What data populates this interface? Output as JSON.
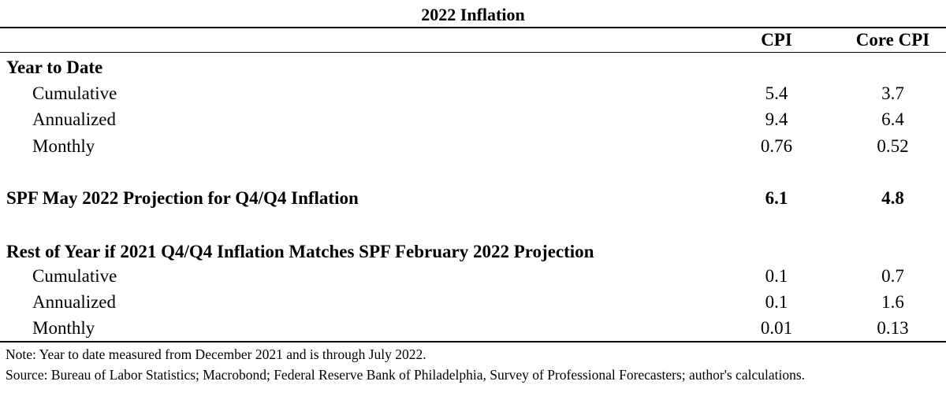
{
  "chart_data": {
    "type": "table",
    "title": "2022 Inflation",
    "columns": [
      "CPI",
      "Core CPI"
    ],
    "sections": [
      {
        "heading": "Year to Date",
        "rows": [
          {
            "label": "Cumulative",
            "values": [
              "5.4",
              "3.7"
            ]
          },
          {
            "label": "Annualized",
            "values": [
              "9.4",
              "6.4"
            ]
          },
          {
            "label": "Monthly",
            "values": [
              "0.76",
              "0.52"
            ]
          }
        ]
      },
      {
        "heading": "SPF May 2022 Projection for Q4/Q4 Inflation",
        "values": [
          "6.1",
          "4.8"
        ]
      },
      {
        "heading": "Rest of Year if 2021 Q4/Q4 Inflation Matches SPF February 2022 Projection",
        "rows": [
          {
            "label": "Cumulative",
            "values": [
              "0.1",
              "0.7"
            ]
          },
          {
            "label": "Annualized",
            "values": [
              "0.1",
              "1.6"
            ]
          },
          {
            "label": "Monthly",
            "values": [
              "0.01",
              "0.13"
            ]
          }
        ]
      }
    ],
    "notes": [
      "Note: Year to date measured from December 2021 and is through July 2022.",
      "Source: Bureau of Labor Statistics; Macrobond; Federal Reserve Bank of Philadelphia, Survey of Professional Forecasters; author's calculations."
    ]
  }
}
